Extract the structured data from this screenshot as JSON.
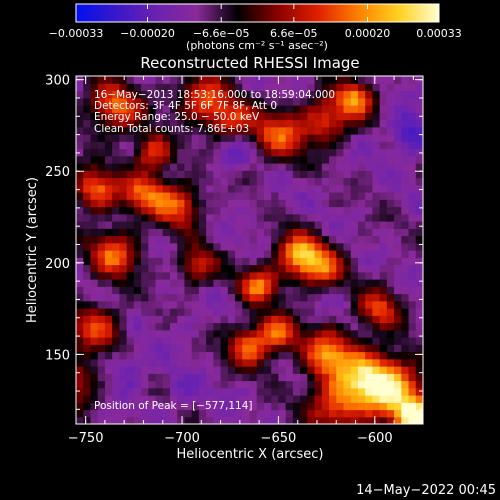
{
  "chart_data": {
    "type": "heatmap",
    "title": "Reconstructed RHESSI Image",
    "xlabel": "Heliocentric X (arcsec)",
    "ylabel": "Heliocentric Y (arcsec)",
    "xlim": [
      -755,
      -575
    ],
    "ylim": [
      112,
      302
    ],
    "x_ticks": [
      {
        "value": -750,
        "label": "−750"
      },
      {
        "value": -700,
        "label": "−700"
      },
      {
        "value": -650,
        "label": "−650"
      },
      {
        "value": -600,
        "label": "−600"
      }
    ],
    "y_ticks": [
      {
        "value": 150,
        "label": "150"
      },
      {
        "value": 200,
        "label": "200"
      },
      {
        "value": 250,
        "label": "250"
      },
      {
        "value": 300,
        "label": "300"
      }
    ],
    "colorbar": {
      "range": [
        -0.00033,
        0.00033
      ],
      "ticks": [
        {
          "value": -0.00033,
          "label": "−0.00033"
        },
        {
          "value": -0.0002,
          "label": "−0.00020"
        },
        {
          "value": -6.6e-05,
          "label": "−6.6e−05"
        },
        {
          "value": 6.6e-05,
          "label": "6.6e−05"
        },
        {
          "value": 0.0002,
          "label": "0.00020"
        },
        {
          "value": 0.00033,
          "label": "0.00033"
        }
      ],
      "unit_label": "(photons cm⁻² s⁻¹ asec⁻²)",
      "colors": [
        "#0010f0",
        "#3a18c8",
        "#6a22b0",
        "#8a2a9a",
        "#000000",
        "#8a0000",
        "#e02000",
        "#ff8000",
        "#ffd020",
        "#ffffd0"
      ]
    },
    "info_lines": [
      "16−May−2013 18:53:16.000 to 18:59:04.000",
      "Detectors: 3F 4F 5F 6F 7F 8F, Att 0",
      "Energy Range: 25.0 − 50.0 keV",
      "Clean     Total counts: 7.86E+03"
    ],
    "peak_label": "Position of Peak = [−577,114]",
    "peak_position": [
      -577,
      114
    ],
    "timestamp": "14−May−2022 00:45",
    "grid": false,
    "hot_spots": [
      {
        "x": -578,
        "y": 115,
        "v": 0.00033,
        "s": 7
      },
      {
        "x": -590,
        "y": 130,
        "v": 0.00022,
        "s": 12
      },
      {
        "x": -605,
        "y": 138,
        "v": 0.00018,
        "s": 11
      },
      {
        "x": -625,
        "y": 150,
        "v": 0.00019,
        "s": 9
      },
      {
        "x": -620,
        "y": 122,
        "v": 0.00014,
        "s": 10
      },
      {
        "x": -650,
        "y": 162,
        "v": 0.00016,
        "s": 7
      },
      {
        "x": -665,
        "y": 155,
        "v": 0.00016,
        "s": 8
      },
      {
        "x": -598,
        "y": 175,
        "v": 0.00012,
        "s": 8
      },
      {
        "x": -640,
        "y": 205,
        "v": 0.00021,
        "s": 8
      },
      {
        "x": -660,
        "y": 188,
        "v": 0.00018,
        "s": 7
      },
      {
        "x": -628,
        "y": 198,
        "v": 0.00016,
        "s": 8
      },
      {
        "x": -650,
        "y": 270,
        "v": 0.00014,
        "s": 10
      },
      {
        "x": -625,
        "y": 278,
        "v": 0.00013,
        "s": 9
      },
      {
        "x": -610,
        "y": 290,
        "v": 0.00018,
        "s": 7
      },
      {
        "x": -690,
        "y": 290,
        "v": 0.00015,
        "s": 9
      },
      {
        "x": -675,
        "y": 278,
        "v": 0.00013,
        "s": 8
      },
      {
        "x": -735,
        "y": 285,
        "v": 0.00016,
        "s": 10
      },
      {
        "x": -715,
        "y": 260,
        "v": 0.00014,
        "s": 7
      },
      {
        "x": -745,
        "y": 240,
        "v": 0.00018,
        "s": 8
      },
      {
        "x": -720,
        "y": 238,
        "v": 0.00015,
        "s": 8
      },
      {
        "x": -702,
        "y": 232,
        "v": 0.00017,
        "s": 8
      },
      {
        "x": -735,
        "y": 205,
        "v": 0.00016,
        "s": 9
      },
      {
        "x": -745,
        "y": 165,
        "v": 0.00013,
        "s": 9
      },
      {
        "x": -692,
        "y": 198,
        "v": 0.0001,
        "s": 7
      },
      {
        "x": -755,
        "y": 135,
        "v": 0.00011,
        "s": 8
      }
    ],
    "cold_spots": [
      {
        "x": -582,
        "y": 270,
        "v": -0.00026,
        "s": 8
      },
      {
        "x": -673,
        "y": 262,
        "v": -0.00022,
        "s": 7
      },
      {
        "x": -728,
        "y": 142,
        "v": -0.0002,
        "s": 7
      },
      {
        "x": -700,
        "y": 130,
        "v": -0.00018,
        "s": 7
      },
      {
        "x": -660,
        "y": 235,
        "v": -0.00012,
        "s": 8
      },
      {
        "x": -612,
        "y": 250,
        "v": -0.00012,
        "s": 9
      },
      {
        "x": -700,
        "y": 165,
        "v": -0.00013,
        "s": 9
      },
      {
        "x": -600,
        "y": 215,
        "v": -0.0001,
        "s": 8
      },
      {
        "x": -678,
        "y": 122,
        "v": -0.00012,
        "s": 8
      },
      {
        "x": -690,
        "y": 215,
        "v": -9e-05,
        "s": 8
      }
    ]
  }
}
